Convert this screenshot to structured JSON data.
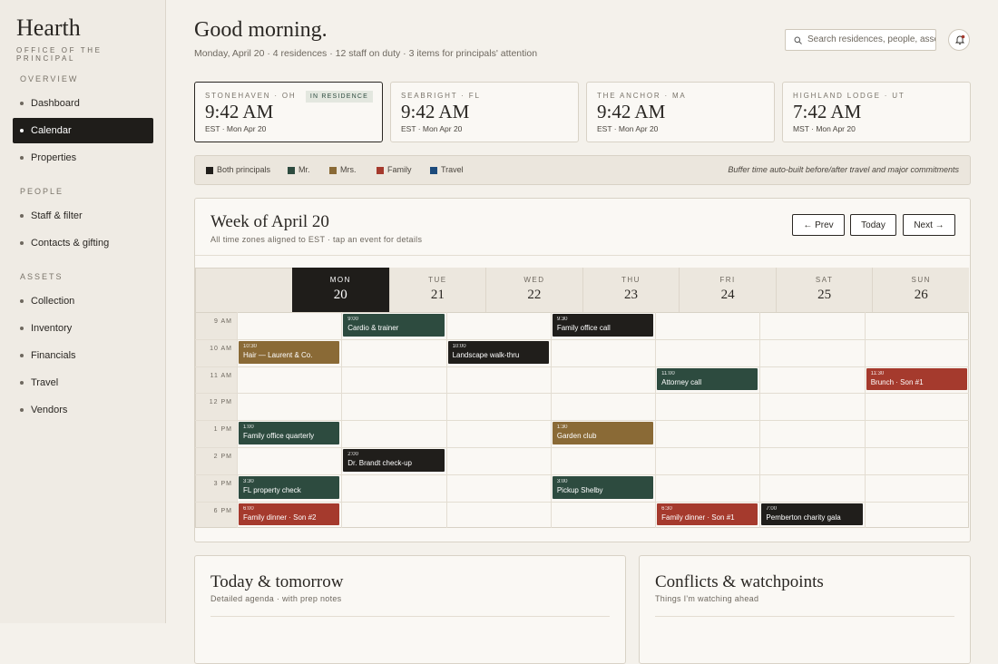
{
  "sidebar": {
    "brand": "Hearth",
    "subtitle": "OFFICE OF THE PRINCIPAL",
    "sections": [
      {
        "heading": "OVERVIEW",
        "items": [
          {
            "label": "Dashboard"
          },
          {
            "label": "Calendar",
            "active": true
          },
          {
            "label": "Properties"
          }
        ]
      },
      {
        "heading": "PEOPLE",
        "items": [
          {
            "label": "Staff & filter"
          },
          {
            "label": "Contacts & gifting"
          }
        ]
      },
      {
        "heading": "ASSETS",
        "items": [
          {
            "label": "Collection"
          },
          {
            "label": "Inventory"
          },
          {
            "label": "Financials"
          },
          {
            "label": "Travel"
          },
          {
            "label": "Vendors"
          }
        ]
      }
    ]
  },
  "header": {
    "greeting": "Good morning.",
    "summary": "Monday, April 20 · 4 residences · 12 staff on duty · 3 items for principals' attention",
    "search_placeholder": "Search residences, people, asse"
  },
  "residences": [
    {
      "name": "STONEHAVEN · OH",
      "status": "IN RESIDENCE",
      "time": "9:42 AM",
      "zone": "EST · Mon Apr 20"
    },
    {
      "name": "SEABRIGHT · FL",
      "time": "9:42 AM",
      "zone": "EST · Mon Apr 20"
    },
    {
      "name": "THE ANCHOR · MA",
      "time": "9:42 AM",
      "zone": "EST · Mon Apr 20"
    },
    {
      "name": "HIGHLAND LODGE · UT",
      "time": "7:42 AM",
      "zone": "MST · Mon Apr 20"
    }
  ],
  "legend": {
    "items": [
      {
        "label": "Both principals",
        "color": "#201e1b"
      },
      {
        "label": "Mr.",
        "color": "#2d4b3f"
      },
      {
        "label": "Mrs.",
        "color": "#8a6a36"
      },
      {
        "label": "Family",
        "color": "#a53a2d"
      },
      {
        "label": "Travel",
        "color": "#1d4b7c"
      }
    ],
    "note": "Buffer time auto-built before/after travel and major commitments"
  },
  "week": {
    "title": "Week of April 20",
    "subtitle": "All time zones aligned to EST · tap an event for details",
    "buttons": [
      "← Prev",
      "Today",
      "Next →"
    ]
  },
  "calendar": {
    "days": [
      {
        "dow": "MON",
        "date": 20,
        "current": true
      },
      {
        "dow": "TUE",
        "date": 21
      },
      {
        "dow": "WED",
        "date": 22
      },
      {
        "dow": "THU",
        "date": 23
      },
      {
        "dow": "FRI",
        "date": 24
      },
      {
        "dow": "SAT",
        "date": 25
      },
      {
        "dow": "SUN",
        "date": 26
      }
    ],
    "rows": [
      {
        "time": "9 AM",
        "cells": [
          null,
          {
            "time": "9:00",
            "title": "Cardio & trainer",
            "category": "Mr."
          },
          null,
          {
            "time": "9:30",
            "title": "Family office call",
            "category": "Both principals"
          },
          null,
          null,
          null
        ]
      },
      {
        "time": "10 AM",
        "cells": [
          {
            "time": "10:30",
            "title": "Hair — Laurent & Co.",
            "category": "Mrs."
          },
          null,
          {
            "time": "10:00",
            "title": "Landscape walk-thru",
            "category": "Both principals"
          },
          null,
          null,
          null,
          null
        ]
      },
      {
        "time": "11 AM",
        "cells": [
          null,
          null,
          null,
          null,
          {
            "time": "11:00",
            "title": "Attorney call",
            "category": "Mr."
          },
          null,
          {
            "time": "11:30",
            "title": "Brunch · Son #1",
            "category": "Family"
          }
        ]
      },
      {
        "time": "12 PM",
        "cells": [
          null,
          null,
          null,
          null,
          null,
          null,
          null
        ]
      },
      {
        "time": "1 PM",
        "cells": [
          {
            "time": "1:00",
            "title": "Family office quarterly",
            "category": "Mr."
          },
          null,
          null,
          {
            "time": "1:30",
            "title": "Garden club",
            "category": "Mrs."
          },
          null,
          null,
          null
        ]
      },
      {
        "time": "2 PM",
        "cells": [
          null,
          {
            "time": "2:00",
            "title": "Dr. Brandt check-up",
            "category": "Both principals"
          },
          null,
          null,
          null,
          null,
          null
        ]
      },
      {
        "time": "3 PM",
        "cells": [
          {
            "time": "3:30",
            "title": "FL property check",
            "category": "Mr."
          },
          null,
          null,
          {
            "time": "3:00",
            "title": "Pickup Shelby",
            "category": "Mr."
          },
          null,
          null,
          null
        ]
      },
      {
        "time": "6 PM",
        "cells": [
          {
            "time": "6:00",
            "title": "Family dinner · Son #2",
            "category": "Family"
          },
          null,
          null,
          null,
          {
            "time": "6:30",
            "title": "Family dinner · Son #1",
            "category": "Family"
          },
          {
            "time": "7:00",
            "title": "Pemberton charity gala",
            "category": "Both principals"
          },
          null
        ]
      }
    ]
  },
  "panels": [
    {
      "title": "Today & tomorrow",
      "subtitle": "Detailed agenda · with prep notes"
    },
    {
      "title": "Conflicts & watchpoints",
      "subtitle": "Things I'm watching ahead"
    }
  ]
}
